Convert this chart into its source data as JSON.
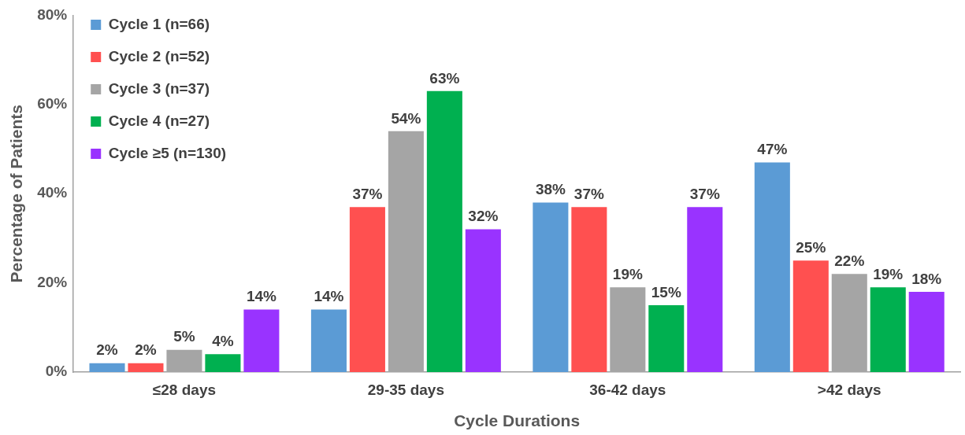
{
  "chart_data": {
    "type": "bar",
    "xlabel": "Cycle Durations",
    "ylabel": "Percentage of Patients",
    "categories": [
      "≤28 days",
      "29-35 days",
      "36-42 days",
      ">42 days"
    ],
    "series": [
      {
        "name": "Cycle 1 (n=66)",
        "color": "#5b9bd5",
        "values": [
          2,
          14,
          38,
          47
        ],
        "value_labels": [
          "2%",
          "14%",
          "38%",
          "47%"
        ]
      },
      {
        "name": "Cycle 2 (n=52)",
        "color": "#ff5050",
        "values": [
          2,
          37,
          37,
          25
        ],
        "value_labels": [
          "2%",
          "37%",
          "37%",
          "25%"
        ]
      },
      {
        "name": "Cycle 3 (n=37)",
        "color": "#a5a5a5",
        "values": [
          5,
          54,
          19,
          22
        ],
        "value_labels": [
          "5%",
          "54%",
          "19%",
          "22%"
        ]
      },
      {
        "name": "Cycle 4 (n=27)",
        "color": "#00b050",
        "values": [
          4,
          63,
          15,
          19
        ],
        "value_labels": [
          "4%",
          "63%",
          "15%",
          "19%"
        ]
      },
      {
        "name": "Cycle ≥5 (n=130)",
        "color": "#9933ff",
        "values": [
          14,
          32,
          37,
          18
        ],
        "value_labels": [
          "14%",
          "32%",
          "37%",
          "18%"
        ]
      }
    ],
    "ylim": [
      0,
      80
    ],
    "yticks": [
      {
        "value": 0,
        "label": "0%"
      },
      {
        "value": 20,
        "label": "20%"
      },
      {
        "value": 40,
        "label": "40%"
      },
      {
        "value": 60,
        "label": "60%"
      },
      {
        "value": 80,
        "label": "80%"
      }
    ],
    "grid": false,
    "legend": "top left"
  }
}
